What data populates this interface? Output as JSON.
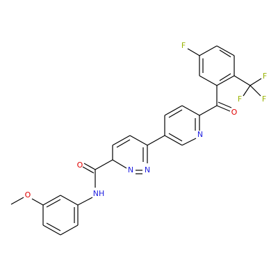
{
  "molecule": {
    "atoms": [
      {
        "label": "F"
      },
      {
        "label": "F"
      },
      {
        "label": "F"
      },
      {
        "label": "F"
      },
      {
        "label": "O"
      },
      {
        "label": "N"
      },
      {
        "label": "N"
      },
      {
        "label": "N"
      },
      {
        "label": "O"
      },
      {
        "label": "NH"
      },
      {
        "label": "O"
      }
    ]
  }
}
